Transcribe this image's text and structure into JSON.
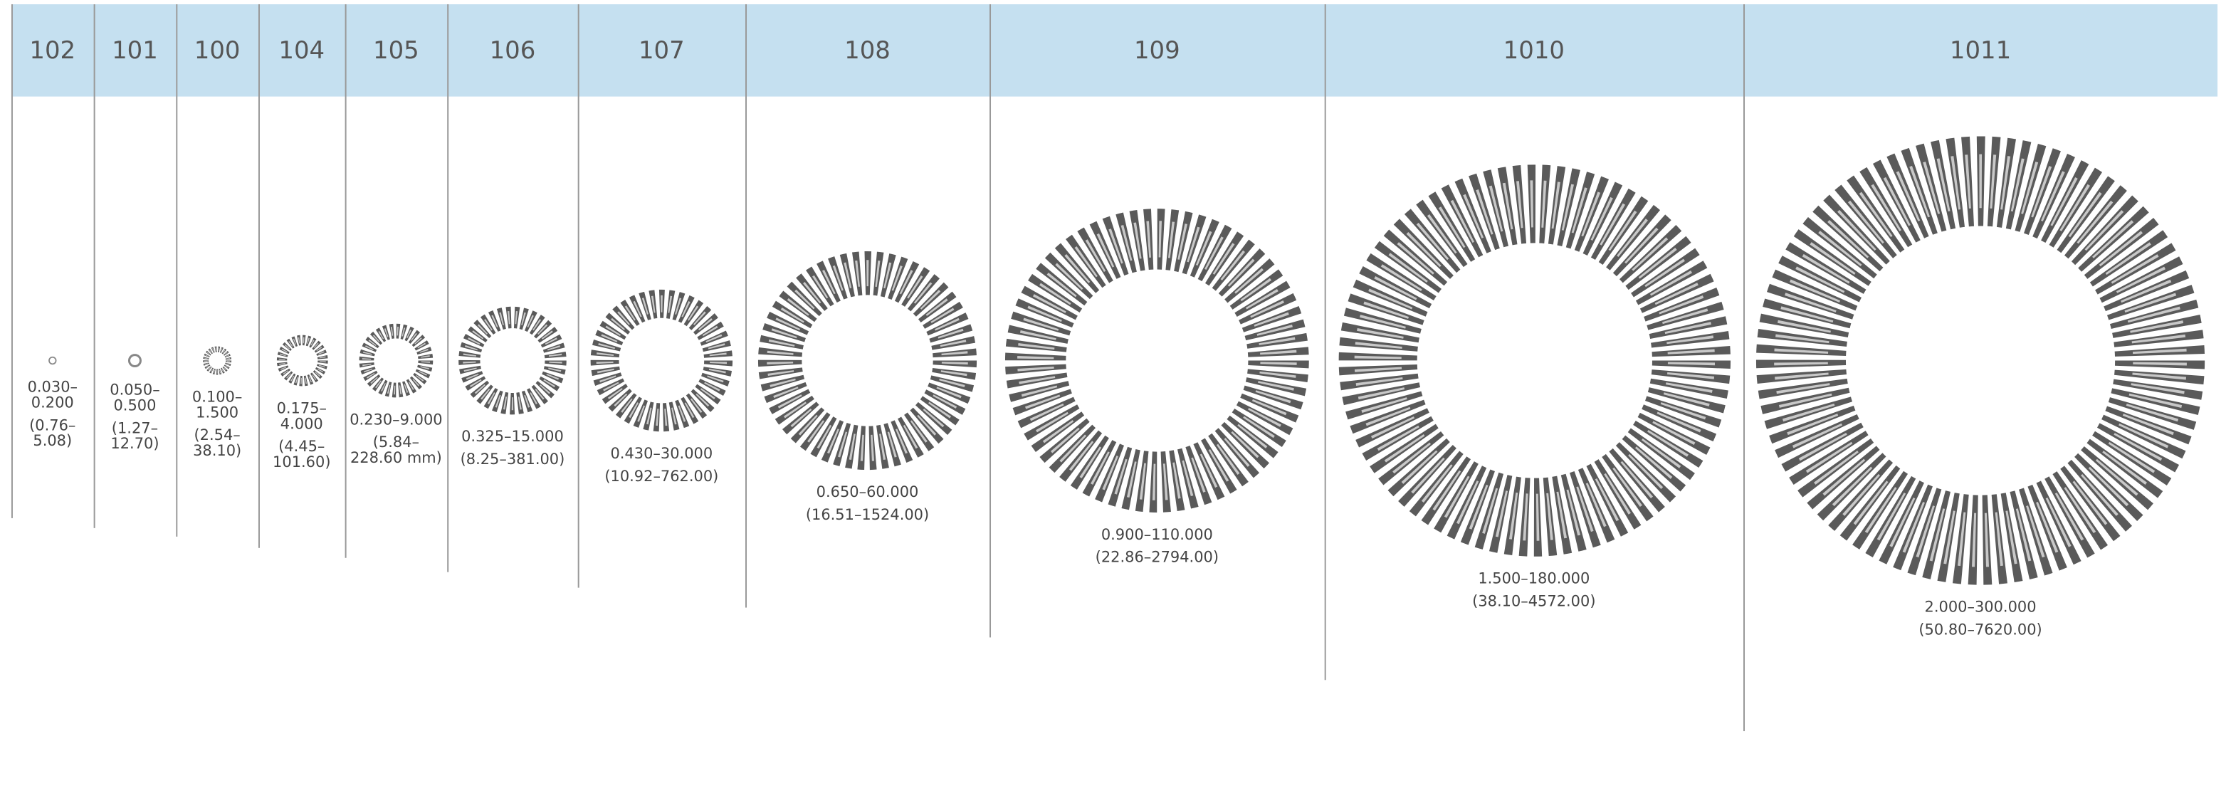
{
  "columns": [
    {
      "series": "102",
      "inch": "0.030–0.200",
      "mm": "(0.76–5.08)"
    },
    {
      "series": "101",
      "inch": "0.050–0.500",
      "mm": "(1.27–12.70)"
    },
    {
      "series": "100",
      "inch": "0.100–1.500",
      "mm": "(2.54–38.10)"
    },
    {
      "series": "104",
      "inch": "0.175–4.000",
      "mm": "(4.45–101.60)"
    },
    {
      "series": "105",
      "inch": "0.230–9.000",
      "mm": "(5.84–228.60 mm)"
    },
    {
      "series": "106",
      "inch": "0.325–15.000",
      "mm": "(8.25–381.00)"
    },
    {
      "series": "107",
      "inch": "0.430–30.000",
      "mm": "(10.92–762.00)"
    },
    {
      "series": "108",
      "inch": "0.650–60.000",
      "mm": "(16.51–1524.00)"
    },
    {
      "series": "109",
      "inch": "0.900–110.000",
      "mm": "(22.86–2794.00)"
    },
    {
      "series": "1010",
      "inch": "1.500–180.000",
      "mm": "(38.10–4572.00)"
    },
    {
      "series": "1011",
      "inch": "2.000–300.000",
      "mm": "(50.80–7620.00)"
    }
  ]
}
